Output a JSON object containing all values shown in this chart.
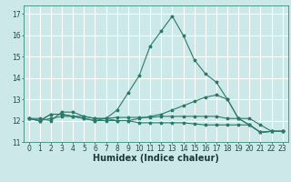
{
  "xlabel": "Humidex (Indice chaleur)",
  "xlim": [
    -0.5,
    23.5
  ],
  "ylim": [
    11,
    17.4
  ],
  "yticks": [
    11,
    12,
    13,
    14,
    15,
    16,
    17
  ],
  "xticks": [
    0,
    1,
    2,
    3,
    4,
    5,
    6,
    7,
    8,
    9,
    10,
    11,
    12,
    13,
    14,
    15,
    16,
    17,
    18,
    19,
    20,
    21,
    22,
    23
  ],
  "bg_color": "#cce8e8",
  "grid_color": "#ffffff",
  "line_color": "#2a7a6a",
  "lines": [
    [
      12.1,
      12.1,
      12.0,
      12.4,
      12.4,
      12.2,
      12.1,
      12.1,
      12.5,
      13.3,
      14.1,
      15.5,
      16.2,
      16.9,
      16.0,
      14.85,
      14.2,
      13.8,
      13.0,
      12.1,
      11.8,
      11.45,
      11.5,
      11.5
    ],
    [
      12.1,
      12.0,
      12.3,
      12.3,
      12.2,
      12.1,
      12.0,
      12.1,
      12.0,
      12.0,
      12.1,
      12.2,
      12.3,
      12.5,
      12.7,
      12.9,
      13.1,
      13.2,
      13.0,
      12.1,
      11.8,
      11.45,
      11.5,
      11.5
    ],
    [
      12.1,
      12.0,
      12.3,
      12.3,
      12.2,
      12.1,
      12.0,
      12.0,
      12.0,
      12.0,
      11.9,
      11.9,
      11.9,
      11.9,
      11.9,
      11.85,
      11.8,
      11.8,
      11.8,
      11.8,
      11.8,
      11.45,
      11.5,
      11.5
    ],
    [
      12.1,
      12.0,
      12.1,
      12.2,
      12.2,
      12.2,
      12.1,
      12.1,
      12.15,
      12.15,
      12.15,
      12.15,
      12.2,
      12.2,
      12.2,
      12.2,
      12.2,
      12.2,
      12.1,
      12.1,
      12.1,
      11.8,
      11.5,
      11.5
    ]
  ],
  "tick_fontsize": 5.5,
  "xlabel_fontsize": 7,
  "xlabel_fontweight": "bold"
}
